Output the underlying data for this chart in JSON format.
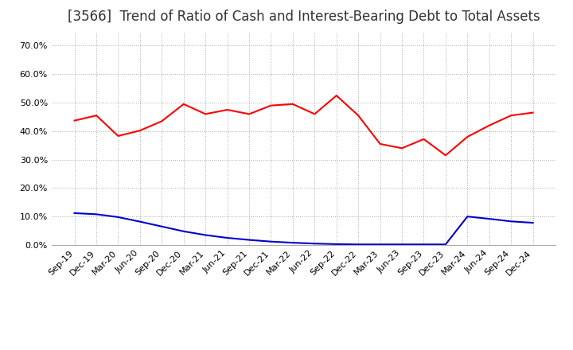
{
  "title": "[3566]  Trend of Ratio of Cash and Interest-Bearing Debt to Total Assets",
  "x_labels": [
    "Sep-19",
    "Dec-19",
    "Mar-20",
    "Jun-20",
    "Sep-20",
    "Dec-20",
    "Mar-21",
    "Jun-21",
    "Sep-21",
    "Dec-21",
    "Mar-22",
    "Jun-22",
    "Sep-22",
    "Dec-22",
    "Mar-23",
    "Jun-23",
    "Sep-23",
    "Dec-23",
    "Mar-24",
    "Jun-24",
    "Sep-24",
    "Dec-24"
  ],
  "cash": [
    0.437,
    0.455,
    0.383,
    0.402,
    0.435,
    0.495,
    0.46,
    0.475,
    0.46,
    0.49,
    0.495,
    0.46,
    0.525,
    0.455,
    0.355,
    0.34,
    0.372,
    0.315,
    0.38,
    0.42,
    0.455,
    0.465
  ],
  "ibd": [
    0.112,
    0.108,
    0.098,
    0.082,
    0.065,
    0.048,
    0.035,
    0.025,
    0.018,
    0.012,
    0.008,
    0.005,
    0.003,
    0.002,
    0.002,
    0.002,
    0.002,
    0.002,
    0.1,
    0.092,
    0.083,
    0.078
  ],
  "cash_color": "#ff0000",
  "ibd_color": "#0000cd",
  "ylim": [
    0.0,
    0.75
  ],
  "yticks": [
    0.0,
    0.1,
    0.2,
    0.3,
    0.4,
    0.5,
    0.6,
    0.7
  ],
  "background_color": "#ffffff",
  "grid_color": "#aaaaaa",
  "title_fontsize": 12,
  "tick_fontsize": 8,
  "legend_fontsize": 9.5
}
